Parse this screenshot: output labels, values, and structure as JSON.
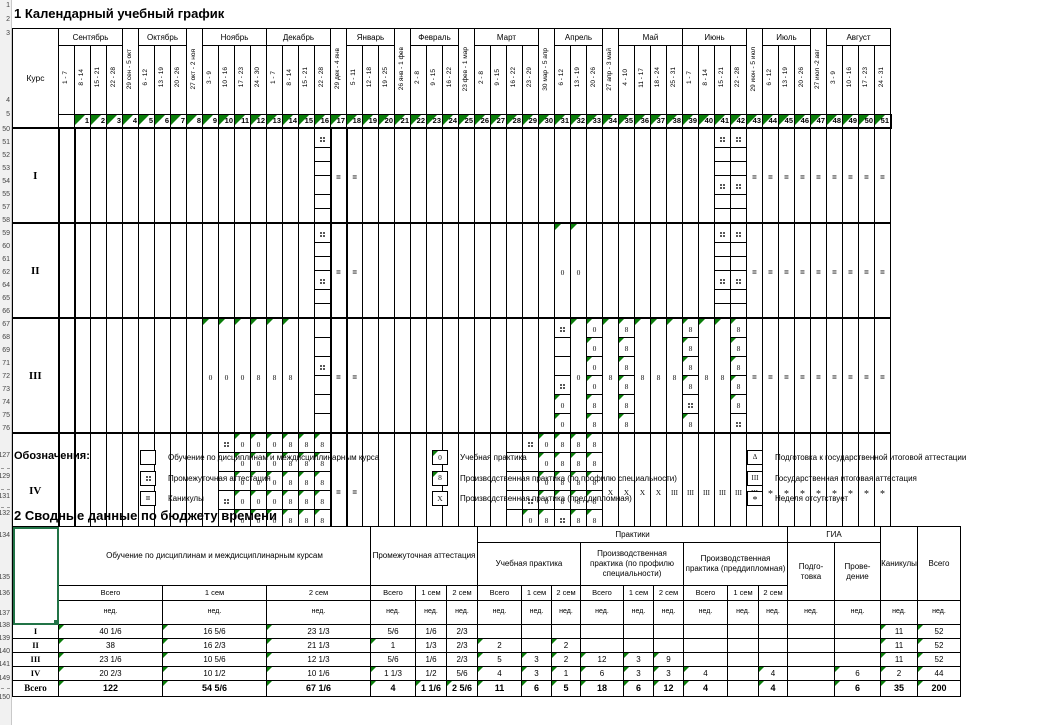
{
  "titles": {
    "calendar": "1 Календарный учебный график",
    "summary": "2 Сводные данные по бюджету времени"
  },
  "calendar": {
    "kurs_label": "Курс",
    "month_groups": [
      {
        "m": "Сентябрь",
        "span": 4
      },
      {
        "v": 5
      },
      {
        "m": "Октябрь",
        "span": 3
      },
      {
        "v": 9
      },
      {
        "m": "Ноябрь",
        "span": 4
      },
      {
        "m": "Декабрь",
        "span": 4
      },
      {
        "v": 18
      },
      {
        "m": "Январь",
        "span": 3
      },
      {
        "v": 22
      },
      {
        "m": "Февраль",
        "span": 3
      },
      {
        "v": 26
      },
      {
        "m": "Март",
        "span": 4
      },
      {
        "v": 31
      },
      {
        "m": "Апрель",
        "span": 3
      },
      {
        "v": 35
      },
      {
        "m": "Май",
        "span": 4
      },
      {
        "m": "Июнь",
        "span": 4
      },
      {
        "v": 44
      },
      {
        "m": "Июль",
        "span": 3
      },
      {
        "v": 48
      },
      {
        "m": "Август",
        "span": 4
      }
    ],
    "week_labels": [
      "1 - 7",
      "8 - 14",
      "15 - 21",
      "22 - 28",
      "29 сен - 5 окт",
      "6 - 12",
      "13 - 19",
      "20 - 26",
      "27 окт - 2 ноя",
      "3 - 9",
      "10 - 16",
      "17 - 23",
      "24 - 30",
      "1 - 7",
      "8 - 14",
      "15 - 21",
      "22 - 28",
      "29 дек - 4 янв",
      "5 - 11",
      "12 - 18",
      "19 - 25",
      "26 янв - 1 фев",
      "2 - 8",
      "9 - 15",
      "16 - 22",
      "23 фев - 1 мар",
      "2 - 8",
      "9 - 15",
      "16 - 22",
      "23 - 29",
      "30 мар - 5 апр",
      "6 - 12",
      "13 - 19",
      "20 - 26",
      "27 апр - 3 май",
      "4 - 10",
      "11 - 17",
      "18 - 24",
      "25 - 31",
      "1 - 7",
      "8 - 14",
      "15 - 21",
      "22 - 28",
      "29 июн - 5 июл",
      "6 - 12",
      "13 - 19",
      "20 - 26",
      "27 июл -2 авг",
      "3 - 9",
      "10 - 16",
      "17 - 23",
      "24 - 31"
    ],
    "week_count": 52,
    "bold_weeks": [
      1,
      18
    ],
    "courses": [
      {
        "label": "I",
        "spans": [
          {
            "f": 17,
            "t": 17,
            "sub": [
              "::",
              "",
              "",
              "",
              "",
              ""
            ]
          },
          {
            "f": 18,
            "t": 19,
            "sym": "="
          },
          {
            "f": 42,
            "t": 43,
            "sub": [
              "::",
              "",
              "",
              "::",
              "",
              ""
            ]
          },
          {
            "f": 44,
            "t": 52,
            "sym": "="
          }
        ]
      },
      {
        "label": "II",
        "spans": [
          {
            "f": 17,
            "t": 17,
            "sub": [
              "::",
              "",
              "",
              "::",
              "",
              ""
            ]
          },
          {
            "f": 18,
            "t": 19,
            "sym": "="
          },
          {
            "f": 32,
            "t": 33,
            "sym": "0",
            "tri": 1
          },
          {
            "f": 42,
            "t": 43,
            "sub": [
              "::",
              "",
              "",
              "::",
              "",
              ""
            ]
          },
          {
            "f": 44,
            "t": 52,
            "sym": "="
          }
        ]
      },
      {
        "label": "III",
        "spans": [
          {
            "f": 10,
            "t": 12,
            "sym": "0",
            "tri": 1
          },
          {
            "f": 13,
            "t": 15,
            "sym": "8",
            "tri": 1
          },
          {
            "f": 17,
            "t": 17,
            "sub": [
              "",
              "",
              "::",
              "",
              "",
              ""
            ]
          },
          {
            "f": 18,
            "t": 19,
            "sym": "="
          },
          {
            "f": 32,
            "t": 32,
            "sub": [
              "::",
              "",
              "",
              "::",
              "0",
              "0"
            ],
            "tris": [
              0,
              0,
              0,
              0,
              1,
              1
            ]
          },
          {
            "f": 33,
            "t": 33,
            "sym": "0",
            "tri": 1
          },
          {
            "f": 34,
            "t": 34,
            "sub": [
              "0",
              "0",
              "0",
              "0",
              "8",
              "8"
            ],
            "tris": [
              1,
              1,
              1,
              1,
              1,
              1
            ]
          },
          {
            "f": 35,
            "t": 35,
            "sym": "8",
            "tri": 1
          },
          {
            "f": 36,
            "t": 36,
            "sub": [
              "8",
              "8",
              "8",
              "8",
              "8",
              "8"
            ],
            "tris": [
              1,
              1,
              1,
              1,
              1,
              1
            ]
          },
          {
            "f": 37,
            "t": 39,
            "sym": "8",
            "tri": 1
          },
          {
            "f": 40,
            "t": 40,
            "sub": [
              "8",
              "8",
              "8",
              "8",
              "::",
              "8"
            ],
            "tris": [
              1,
              1,
              1,
              1,
              0,
              1
            ]
          },
          {
            "f": 41,
            "t": 42,
            "sym": "8",
            "tri": 1
          },
          {
            "f": 43,
            "t": 43,
            "sub": [
              "8",
              "8",
              "8",
              "8",
              "8",
              "::"
            ],
            "tris": [
              1,
              1,
              1,
              1,
              1,
              0
            ]
          },
          {
            "f": 44,
            "t": 52,
            "sym": "="
          }
        ]
      },
      {
        "label": "IV",
        "spans": [
          {
            "f": 11,
            "t": 11,
            "sub": [
              "::",
              "",
              "",
              "::",
              "",
              "0"
            ],
            "tris": [
              0,
              0,
              0,
              0,
              0,
              1
            ]
          },
          {
            "f": 12,
            "t": 13,
            "sub": [
              "0",
              "0",
              "0",
              "0",
              "0",
              "0"
            ],
            "tris": [
              1,
              1,
              1,
              1,
              1,
              1
            ]
          },
          {
            "f": 14,
            "t": 14,
            "sub": [
              "0",
              "0",
              "0",
              "0",
              "0",
              "8"
            ],
            "tris": [
              1,
              1,
              1,
              1,
              1,
              1
            ]
          },
          {
            "f": 15,
            "t": 16,
            "sub": [
              "8",
              "8",
              "8",
              "8",
              "8",
              "8"
            ],
            "tris": [
              1,
              1,
              1,
              1,
              1,
              1
            ]
          },
          {
            "f": 17,
            "t": 17,
            "sub": [
              "8",
              "8",
              "8",
              "8",
              "8",
              "::"
            ],
            "tris": [
              1,
              1,
              1,
              1,
              1,
              0
            ]
          },
          {
            "f": 18,
            "t": 19,
            "sym": "="
          },
          {
            "f": 29,
            "t": 29,
            "sub": [
              "",
              "",
              "",
              "",
              "",
              "::"
            ]
          },
          {
            "f": 30,
            "t": 30,
            "sub": [
              "::",
              "",
              "",
              "::",
              "0",
              "0"
            ],
            "tris": [
              0,
              0,
              0,
              0,
              1,
              1
            ]
          },
          {
            "f": 31,
            "t": 31,
            "sub": [
              "0",
              "0",
              "0",
              "0",
              "8",
              "8"
            ],
            "tris": [
              1,
              1,
              1,
              1,
              1,
              1
            ]
          },
          {
            "f": 32,
            "t": 32,
            "sub": [
              "8",
              "8",
              "8",
              "8",
              "::",
              "8"
            ],
            "tris": [
              1,
              1,
              1,
              1,
              0,
              1
            ]
          },
          {
            "f": 33,
            "t": 33,
            "sub": [
              "8",
              "8",
              "8",
              "8",
              "8",
              "8"
            ],
            "tris": [
              1,
              1,
              1,
              1,
              1,
              1
            ]
          },
          {
            "f": 34,
            "t": 34,
            "sub": [
              "8",
              "8",
              "8",
              "8",
              "8",
              "::"
            ],
            "tris": [
              1,
              1,
              1,
              1,
              1,
              0
            ]
          },
          {
            "f": 35,
            "t": 38,
            "sym": "X"
          },
          {
            "f": 39,
            "t": 44,
            "sym": "III"
          },
          {
            "f": 45,
            "t": 52,
            "sym": "*"
          }
        ]
      }
    ]
  },
  "legend": {
    "label": "Обозначения:",
    "columns": [
      [
        {
          "sym": "",
          "label": "Обучение по дисциплинам и междисциплинарным курса"
        },
        {
          "sym": "::",
          "label": "Промежуточная аттестация"
        },
        {
          "sym": "=",
          "label": "Каникулы"
        }
      ],
      [
        {
          "sym": "0",
          "tri": 1,
          "label": "Учебная практика"
        },
        {
          "sym": "8",
          "tri": 1,
          "label": "Производственная практика (по профилю специальности)"
        },
        {
          "sym": "X",
          "label": "Производственная практика (преддипломная)"
        }
      ],
      [
        {
          "sym": "Δ",
          "label": "Подготовка к государственной итоговой аттестации"
        },
        {
          "sym": "III",
          "label": "Государственная итоговая аттестация"
        },
        {
          "sym": "*",
          "label": "Неделя отсутствует"
        }
      ]
    ]
  },
  "summary": {
    "headers": {
      "obuchenie": "Обучение по дисциплинам и междисциплинарным курсам",
      "pa": "Промежуточная аттестация",
      "praktiki": "Практики",
      "up": "Учебная практика",
      "pp": "Производственная практика (по профилю специальности)",
      "pd": "Производственная практика (преддипломная)",
      "gia": "ГИА",
      "podg": "Подго-\nтовка",
      "prov": "Прове-\nдение",
      "kanikuly": "Каникулы",
      "vsego": "Всего",
      "sub": [
        "Всего",
        "1 сем",
        "2 сем"
      ],
      "ned": "нед."
    },
    "rows": [
      {
        "label": "I",
        "cells": [
          "40 1/6|t",
          "16 5/6|t",
          "23 1/3|t",
          "5/6",
          "1/6",
          "2/3",
          "",
          "",
          "",
          "",
          "",
          "",
          "",
          "",
          "",
          "",
          "",
          "11|t",
          "52|t"
        ]
      },
      {
        "label": "II",
        "cells": [
          "38|t",
          "16 2/3|t",
          "21 1/3|t",
          "1|t",
          "1/3",
          "2/3",
          "2|t",
          "",
          "2|t",
          "",
          "",
          "",
          "",
          "",
          "",
          "",
          "",
          "11|t",
          "52|t"
        ]
      },
      {
        "label": "III",
        "cells": [
          "23 1/6|t",
          "10 5/6|t",
          "12 1/3|t",
          "5/6",
          "1/6",
          "2/3",
          "5|t",
          "3|t",
          "2|t",
          "12|t",
          "3|t",
          "9|t",
          "",
          "",
          "",
          "",
          "",
          "11|t",
          "52|t"
        ]
      },
      {
        "label": "IV",
        "cells": [
          "20 2/3|t",
          "10 1/2|t",
          "10 1/6|t",
          "1 1/3|t",
          "1/2",
          "5/6",
          "4|t",
          "3|t",
          "1|t",
          "6|t",
          "3|t",
          "3|t",
          "4|t",
          "",
          "4|t",
          "",
          "6|t",
          "2|t",
          "44|t"
        ]
      },
      {
        "label": "Всего",
        "total": 1,
        "cells": [
          "122|t",
          "54 5/6|t",
          "67 1/6|t",
          "4|t",
          "1 1/6|t",
          "2 5/6|t",
          "11|t",
          "6|t",
          "5|t",
          "18|t",
          "6|t",
          "12|t",
          "4|t",
          "",
          "4|t",
          "",
          "6|t",
          "35|t",
          "200|t"
        ]
      }
    ]
  },
  "gutter_rows": {
    "top": [
      "1",
      "2",
      "3"
    ],
    "header": [
      "4",
      "5"
    ],
    "course_rows": [
      [
        "50",
        "51",
        "52",
        "53",
        "54",
        "55"
      ],
      [
        "57",
        "58",
        "59",
        "60",
        "61",
        "62"
      ],
      [
        "64",
        "65",
        "66",
        "67",
        "68",
        "69"
      ],
      [
        "71",
        "72",
        "73",
        "74",
        "75",
        "76"
      ]
    ],
    "legend": [
      "127",
      "129",
      "131"
    ],
    "summary_title": "132",
    "summary_header": [
      "134",
      "135",
      "136",
      "137"
    ],
    "summary_data": [
      "138",
      "139",
      "140",
      "141",
      "149"
    ],
    "bottom": "150"
  }
}
